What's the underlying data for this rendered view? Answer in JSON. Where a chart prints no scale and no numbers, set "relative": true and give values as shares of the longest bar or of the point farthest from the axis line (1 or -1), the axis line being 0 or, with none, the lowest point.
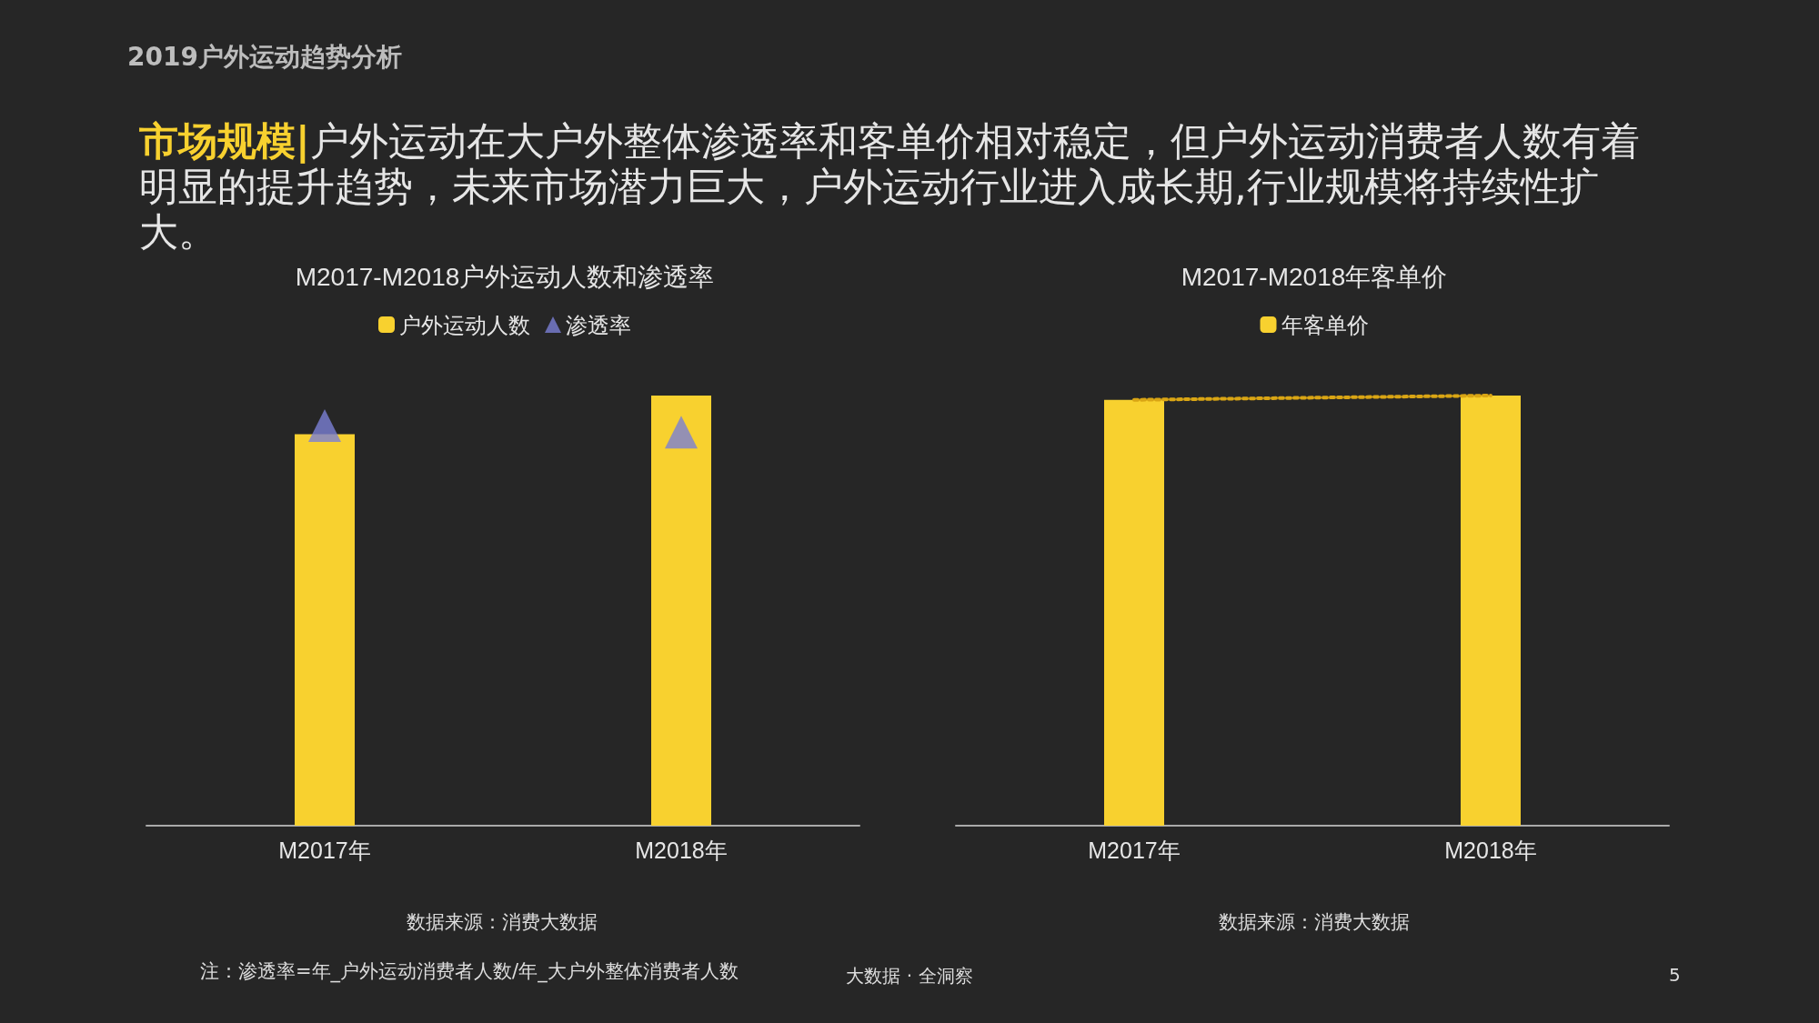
{
  "chart_data": [
    {
      "type": "bar",
      "title": "M2017-M2018户外运动人数和渗透率",
      "categories": [
        "M2017年",
        "M2018年"
      ],
      "relative": true,
      "legend": "top",
      "grid": false,
      "series": [
        {
          "name": "户外运动人数",
          "color": "#f8d12f",
          "values": [
            0.91,
            1
          ]
        },
        {
          "name": "渗透率",
          "type": "scatter",
          "marker": "triangle",
          "color": "#7a7fd4",
          "values": [
            0.93,
            0.915
          ]
        }
      ],
      "annotations": [
        "2019户外运动趋势分析",
        "市场规模|",
        "户外运动在大户外整体渗透率和客单价相对稳定，但户外运动消费者人数有着明显的提升趋势，未来市场潜力巨大，户外运动行业进入成长期,行业规模将持续性扩大。",
        "数据来源：消费大数据",
        "注：渗透率=年_户外运动消费者人数/年_大户外整体消费者人数",
        "大数据 · 全洞察",
        "5"
      ]
    },
    {
      "type": "bar",
      "title": "M2017-M2018年客单价",
      "categories": [
        "M2017年",
        "M2018年"
      ],
      "relative": true,
      "legend": "top",
      "grid": false,
      "series": [
        {
          "name": "年客单价",
          "color": "#f8d12f",
          "values": [
            0.99,
            1
          ]
        },
        {
          "type": "line",
          "marker": "none",
          "line_style": "dotted",
          "color": "#d9a514",
          "values": [
            0.99,
            1
          ]
        }
      ],
      "annotations": [
        "数据来源：消费大数据"
      ]
    }
  ]
}
